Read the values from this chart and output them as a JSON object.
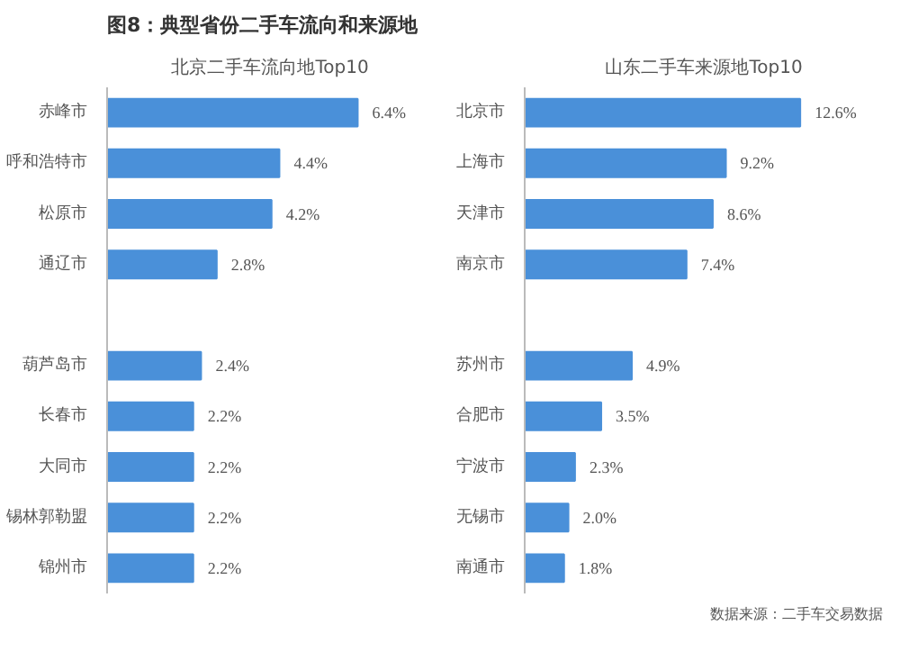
{
  "chart_data": [
    {
      "type": "bar",
      "orientation": "horizontal",
      "title": "图8：典型省份二手车流向和来源地",
      "subtitle": "北京二手车流向地Top10",
      "categories": [
        "赤峰市",
        "呼和浩特市",
        "松原市",
        "通辽市",
        null,
        "葫芦岛市",
        "长春市",
        "大同市",
        "锡林郭勒盟",
        "锦州市"
      ],
      "values": [
        6.4,
        4.4,
        4.2,
        2.8,
        null,
        2.4,
        2.2,
        2.2,
        2.2,
        2.2
      ],
      "value_labels": [
        "6.4%",
        "4.4%",
        "4.2%",
        "2.8%",
        null,
        "2.4%",
        "2.2%",
        "2.2%",
        "2.2%",
        "2.2%"
      ],
      "color": "#4a90d9",
      "grid": false
    },
    {
      "type": "bar",
      "orientation": "horizontal",
      "title": "山东二手车来源地Top10",
      "categories": [
        "北京市",
        "上海市",
        "天津市",
        "南京市",
        null,
        "苏州市",
        "合肥市",
        "宁波市",
        "无锡市",
        "南通市"
      ],
      "values": [
        12.6,
        9.2,
        8.6,
        7.4,
        null,
        4.9,
        3.5,
        2.3,
        2.0,
        1.8
      ],
      "value_labels": [
        "12.6%",
        "9.2%",
        "8.6%",
        "7.4%",
        null,
        "4.9%",
        "3.5%",
        "2.3%",
        "2.0%",
        "1.8%"
      ],
      "color": "#4a90d9",
      "grid": false,
      "annotations": [
        "数据来源：二手车交易数据"
      ]
    }
  ]
}
